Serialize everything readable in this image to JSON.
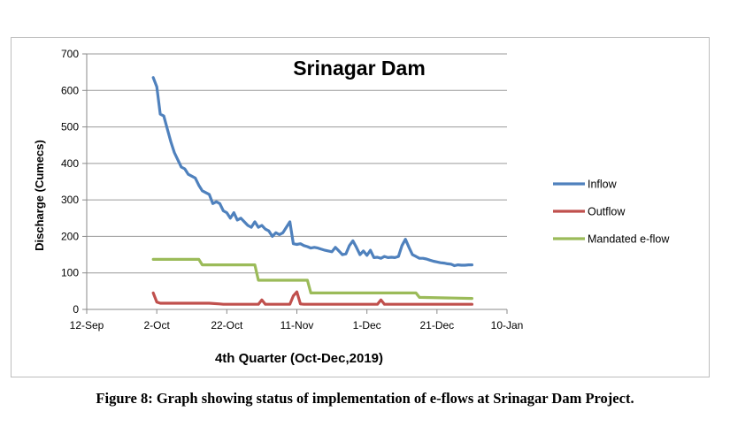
{
  "chart_data": {
    "type": "line",
    "title": "Srinagar Dam",
    "xlabel": "4th Quarter (Oct-Dec,2019)",
    "ylabel": "Discharge (Cumecs)",
    "ylim": [
      0,
      700
    ],
    "yticks": [
      0,
      100,
      200,
      300,
      400,
      500,
      600,
      700
    ],
    "xlim": [
      "2019-09-12",
      "2020-01-10"
    ],
    "xticks": [
      "2019-09-12",
      "2019-10-02",
      "2019-10-22",
      "2019-11-11",
      "2019-12-01",
      "2019-12-21",
      "2020-01-10"
    ],
    "xtick_labels": [
      "12-Sep",
      "2-Oct",
      "22-Oct",
      "11-Nov",
      "1-Dec",
      "21-Dec",
      "10-Jan"
    ],
    "grid": "horizontal",
    "legend_position": "right",
    "series": [
      {
        "name": "Inflow",
        "color": "#4f81bd",
        "x": [
          "2019-10-01",
          "2019-10-02",
          "2019-10-03",
          "2019-10-04",
          "2019-10-05",
          "2019-10-06",
          "2019-10-07",
          "2019-10-08",
          "2019-10-09",
          "2019-10-10",
          "2019-10-11",
          "2019-10-12",
          "2019-10-13",
          "2019-10-14",
          "2019-10-15",
          "2019-10-16",
          "2019-10-17",
          "2019-10-18",
          "2019-10-19",
          "2019-10-20",
          "2019-10-21",
          "2019-10-22",
          "2019-10-23",
          "2019-10-24",
          "2019-10-25",
          "2019-10-26",
          "2019-10-27",
          "2019-10-28",
          "2019-10-29",
          "2019-10-30",
          "2019-10-31",
          "2019-11-01",
          "2019-11-02",
          "2019-11-03",
          "2019-11-04",
          "2019-11-05",
          "2019-11-06",
          "2019-11-07",
          "2019-11-08",
          "2019-11-09",
          "2019-11-10",
          "2019-11-11",
          "2019-11-12",
          "2019-11-13",
          "2019-11-14",
          "2019-11-15",
          "2019-11-16",
          "2019-11-17",
          "2019-11-18",
          "2019-11-19",
          "2019-11-20",
          "2019-11-21",
          "2019-11-22",
          "2019-11-23",
          "2019-11-24",
          "2019-11-25",
          "2019-11-26",
          "2019-11-27",
          "2019-11-28",
          "2019-11-29",
          "2019-11-30",
          "2019-12-01",
          "2019-12-02",
          "2019-12-03",
          "2019-12-04",
          "2019-12-05",
          "2019-12-06",
          "2019-12-07",
          "2019-12-08",
          "2019-12-09",
          "2019-12-10",
          "2019-12-11",
          "2019-12-12",
          "2019-12-13",
          "2019-12-14",
          "2019-12-15",
          "2019-12-16",
          "2019-12-17",
          "2019-12-18",
          "2019-12-19",
          "2019-12-20",
          "2019-12-21",
          "2019-12-22",
          "2019-12-23",
          "2019-12-24",
          "2019-12-25",
          "2019-12-26",
          "2019-12-27",
          "2019-12-28",
          "2019-12-29",
          "2019-12-30",
          "2019-12-31"
        ],
        "values": [
          635,
          610,
          535,
          530,
          495,
          460,
          430,
          410,
          390,
          385,
          370,
          365,
          360,
          340,
          325,
          320,
          315,
          290,
          295,
          290,
          270,
          265,
          250,
          265,
          245,
          250,
          240,
          230,
          225,
          240,
          225,
          230,
          220,
          215,
          200,
          210,
          205,
          210,
          225,
          240,
          180,
          178,
          180,
          175,
          172,
          168,
          170,
          168,
          165,
          162,
          160,
          158,
          170,
          160,
          150,
          152,
          175,
          188,
          170,
          150,
          160,
          148,
          162,
          142,
          143,
          140,
          145,
          142,
          143,
          142,
          145,
          175,
          192,
          170,
          150,
          145,
          140,
          140,
          138,
          135,
          132,
          130,
          128,
          127,
          125,
          124,
          120,
          122,
          121,
          121,
          122,
          122
        ]
      },
      {
        "name": "Outflow",
        "color": "#c0504d",
        "x": [
          "2019-10-01",
          "2019-10-02",
          "2019-10-03",
          "2019-10-10",
          "2019-10-17",
          "2019-10-20",
          "2019-10-21",
          "2019-10-31",
          "2019-11-01",
          "2019-11-02",
          "2019-11-03",
          "2019-11-09",
          "2019-11-10",
          "2019-11-11",
          "2019-11-12",
          "2019-11-13",
          "2019-11-20",
          "2019-11-30",
          "2019-12-04",
          "2019-12-05",
          "2019-12-06",
          "2019-12-07",
          "2019-12-08",
          "2019-12-15",
          "2019-12-31"
        ],
        "values": [
          45,
          20,
          17,
          17,
          17,
          15,
          14,
          14,
          26,
          14,
          14,
          14,
          37,
          48,
          15,
          14,
          14,
          14,
          14,
          26,
          14,
          14,
          14,
          14,
          14
        ]
      },
      {
        "name": "Mandated e-flow",
        "color": "#9bbb59",
        "x": [
          "2019-10-01",
          "2019-10-14",
          "2019-10-15",
          "2019-10-30",
          "2019-10-31",
          "2019-11-14",
          "2019-11-15",
          "2019-12-15",
          "2019-12-16",
          "2019-12-31"
        ],
        "values": [
          137,
          137,
          122,
          122,
          80,
          80,
          45,
          45,
          33,
          30
        ]
      }
    ]
  },
  "caption": "Figure 8: Graph showing status of implementation of e-flows at Srinagar Dam Project."
}
